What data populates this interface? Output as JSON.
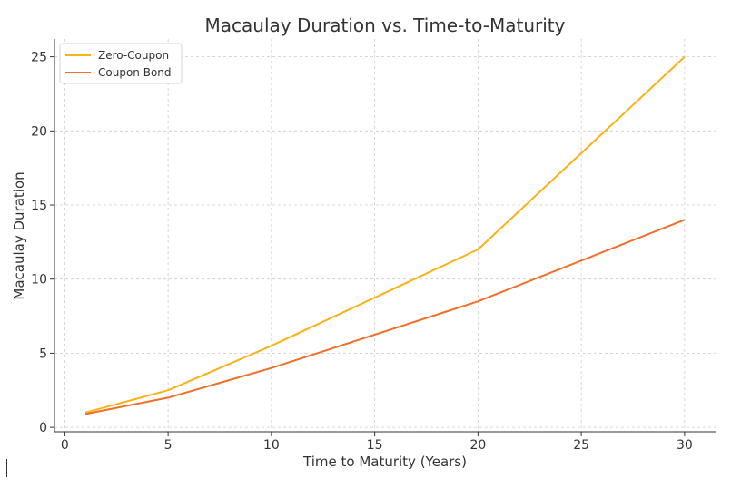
{
  "chart_data": {
    "type": "line",
    "title": "Macaulay Duration vs. Time-to-Maturity",
    "xlabel": "Time to Maturity (Years)",
    "ylabel": "Macaulay Duration",
    "xlim": [
      -0.5,
      31.5
    ],
    "ylim": [
      -0.3,
      26.2
    ],
    "xticks": [
      0,
      5,
      10,
      15,
      20,
      25,
      30
    ],
    "yticks": [
      0,
      5,
      10,
      15,
      20,
      25
    ],
    "grid": true,
    "legend_position": "top-left",
    "series": [
      {
        "name": "Zero-Coupon",
        "color": "#F9B217",
        "x": [
          1,
          5,
          10,
          20,
          30
        ],
        "y": [
          1,
          2.5,
          5.5,
          12,
          25
        ]
      },
      {
        "name": "Coupon Bond",
        "color": "#EF6F2B",
        "x": [
          1,
          5,
          10,
          20,
          30
        ],
        "y": [
          0.9,
          2,
          4,
          8.5,
          14
        ]
      }
    ]
  }
}
